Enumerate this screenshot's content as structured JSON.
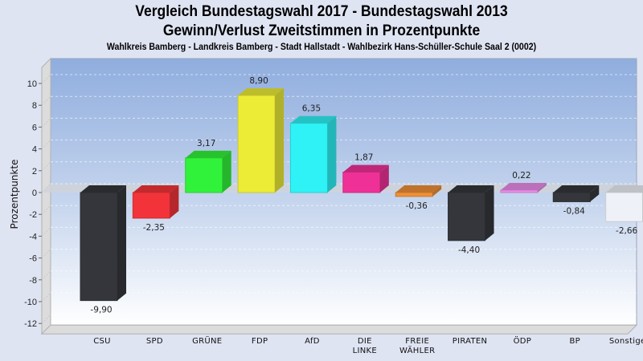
{
  "chart_data": {
    "type": "bar",
    "title": "Vergleich Bundestagswahl 2017 - Bundestagswahl 2013",
    "subtitle": "Gewinn/Verlust Zweitstimmen in Prozentpunkte",
    "caption": "Wahlkreis Bamberg - Landkreis Bamberg - Stadt Hallstadt - Wahlbezirk Hans-Schüller-Schule Saal 2 (0002)",
    "xlabel": "",
    "ylabel": "Prozentpunkte",
    "ylim": [
      -12,
      11
    ],
    "yticks": [
      10,
      8,
      6,
      4,
      2,
      0,
      -2,
      -4,
      -6,
      -8,
      -10,
      -12
    ],
    "grid": true,
    "categories": [
      "CSU",
      "SPD",
      "GRÜNE",
      "FDP",
      "AfD",
      "DIE LINKE",
      "FREIE WÄHLER",
      "PIRATEN",
      "ÖDP",
      "BP",
      "Sonstige"
    ],
    "category_lines": [
      [
        "CSU"
      ],
      [
        "SPD"
      ],
      [
        "GRÜNE"
      ],
      [
        "FDP"
      ],
      [
        "AfD"
      ],
      [
        "DIE",
        "LINKE"
      ],
      [
        "FREIE",
        "WÄHLER"
      ],
      [
        "PIRATEN"
      ],
      [
        "ÖDP"
      ],
      [
        "BP"
      ],
      [
        "Sonstige"
      ]
    ],
    "values": [
      -9.9,
      -2.35,
      3.17,
      8.9,
      6.35,
      1.87,
      -0.36,
      -4.4,
      0.22,
      -0.84,
      -2.66
    ],
    "value_labels": [
      "-9,90",
      "-2,35",
      "3,17",
      "8,90",
      "6,35",
      "1,87",
      "-0,36",
      "-4,40",
      "0,22",
      "-0,84",
      "-2,66"
    ],
    "colors": [
      "#34363b",
      "#f2343a",
      "#31f23a",
      "#ecec37",
      "#2ef2f5",
      "#ef3197",
      "#ef8f37",
      "#34363b",
      "#ea8de8",
      "#34363b",
      "#eef2f8"
    ]
  }
}
